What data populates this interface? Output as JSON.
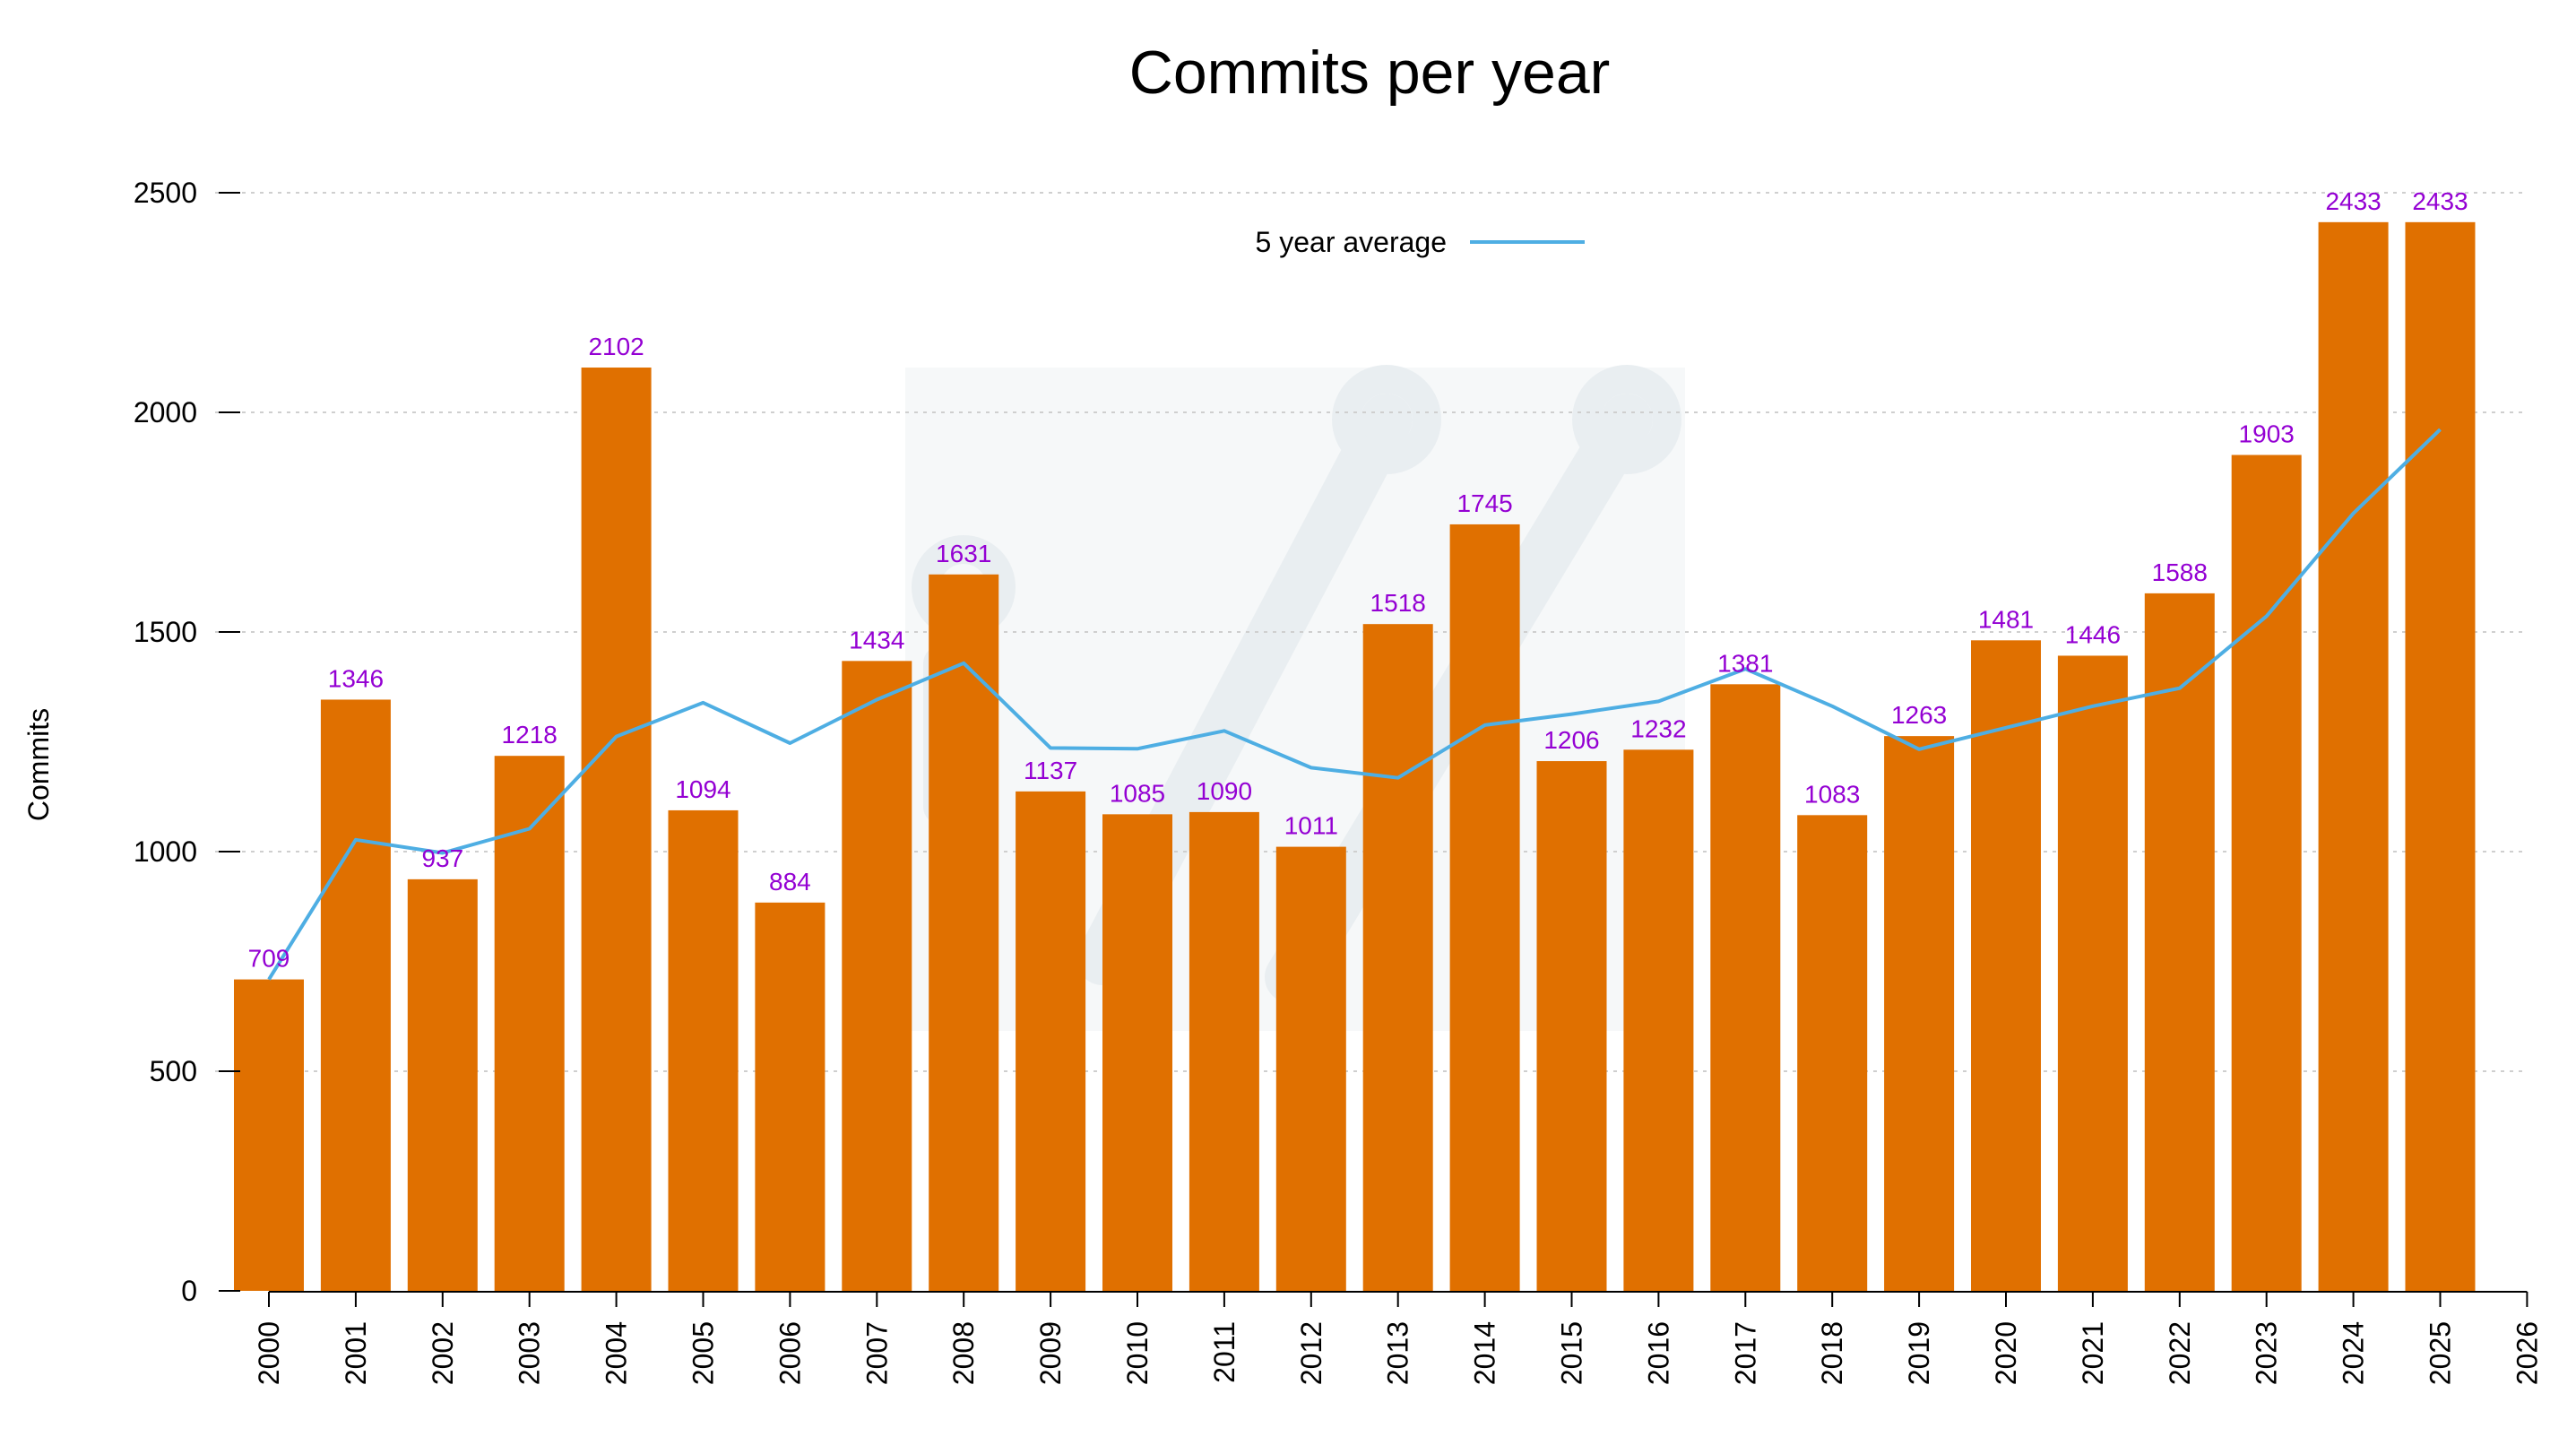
{
  "chart_data": {
    "type": "bar",
    "title": "Commits per year",
    "xlabel": "",
    "ylabel": "Commits",
    "ylim": [
      0,
      2500
    ],
    "yticks": [
      0,
      500,
      1000,
      1500,
      2000,
      2500
    ],
    "x_tick_labels": [
      "2000",
      "2001",
      "2002",
      "2003",
      "2004",
      "2005",
      "2006",
      "2007",
      "2008",
      "2009",
      "2010",
      "2011",
      "2012",
      "2013",
      "2014",
      "2015",
      "2016",
      "2017",
      "2018",
      "2019",
      "2020",
      "2021",
      "2022",
      "2023",
      "2024",
      "2025",
      "2026"
    ],
    "categories": [
      "2000",
      "2001",
      "2002",
      "2003",
      "2004",
      "2005",
      "2006",
      "2007",
      "2008",
      "2009",
      "2010",
      "2011",
      "2012",
      "2013",
      "2014",
      "2015",
      "2016",
      "2017",
      "2018",
      "2019",
      "2020",
      "2021",
      "2022",
      "2023",
      "2024",
      "2025"
    ],
    "values": [
      709,
      1346,
      937,
      1218,
      2102,
      1094,
      884,
      1434,
      1631,
      1137,
      1085,
      1090,
      1011,
      1518,
      1745,
      1206,
      1232,
      1381,
      1083,
      1263,
      1481,
      1446,
      1588,
      1903,
      2433,
      2433
    ],
    "bar_labels": [
      "709",
      "1346",
      "937",
      "1218",
      "2102",
      "1094",
      "884",
      "1434",
      "1631",
      "1137",
      "1085",
      "1090",
      "1011",
      "1518",
      "1745",
      "1206",
      "1232",
      "1381",
      "1083",
      "1263",
      "1481",
      "1446",
      "1588",
      "1903",
      "2433",
      "2433"
    ],
    "grid": true,
    "legend_position": "top-center",
    "series": [
      {
        "name": "5 year average",
        "type": "line",
        "values": [
          709,
          1027,
          997,
          1052,
          1262,
          1339,
          1247,
          1346,
          1429,
          1236,
          1234,
          1275,
          1191,
          1168,
          1288,
          1313,
          1342,
          1416,
          1331,
          1233,
          1282,
          1331,
          1372,
          1536,
          1770,
          1961
        ]
      }
    ],
    "colors": {
      "bar": "#e07000",
      "line": "#4eaee3",
      "data_label": "#9400d3",
      "grid": "#cfcfcf",
      "axis": "#000000",
      "watermark": "#e6ecef"
    }
  }
}
